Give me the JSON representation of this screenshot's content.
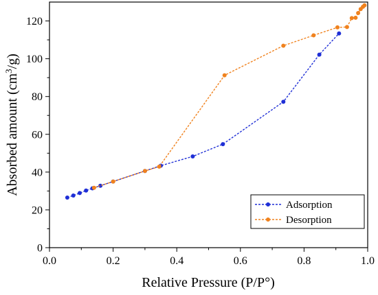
{
  "chart_data": {
    "type": "line",
    "xlabel": "Relative Pressure (P/P°)",
    "ylabel_main": "Absorbed amount (cm",
    "ylabel_sup": "3",
    "ylabel_end": "/g)",
    "xlim": [
      0.0,
      1.0
    ],
    "ylim": [
      0,
      130
    ],
    "xticks": [
      0.0,
      0.2,
      0.4,
      0.6,
      0.8,
      1.0
    ],
    "xtick_labels": [
      "0.0",
      "0.2",
      "0.4",
      "0.6",
      "0.8",
      "1.0"
    ],
    "yticks": [
      0,
      20,
      40,
      60,
      80,
      100,
      120
    ],
    "ytick_labels": [
      "0",
      "20",
      "40",
      "60",
      "80",
      "100",
      "120"
    ],
    "grid": false,
    "legend_position": "bottom-right",
    "series": [
      {
        "name": "Adsorption",
        "color": "#1f2fd6",
        "line_style": "dashed",
        "points": [
          [
            0.056,
            26.5
          ],
          [
            0.075,
            27.6
          ],
          [
            0.095,
            28.9
          ],
          [
            0.115,
            30.2
          ],
          [
            0.135,
            31.4
          ],
          [
            0.16,
            32.8
          ],
          [
            0.2,
            35.0
          ],
          [
            0.3,
            40.6
          ],
          [
            0.35,
            43.4
          ],
          [
            0.45,
            48.3
          ],
          [
            0.545,
            54.8
          ],
          [
            0.735,
            77.2
          ],
          [
            0.848,
            102.2
          ],
          [
            0.91,
            113.4
          ]
        ]
      },
      {
        "name": "Desorption",
        "color": "#f0821e",
        "line_style": "dashed",
        "points": [
          [
            0.99,
            128.3
          ],
          [
            0.985,
            127.5
          ],
          [
            0.978,
            126.3
          ],
          [
            0.97,
            124.2
          ],
          [
            0.962,
            121.7
          ],
          [
            0.95,
            121.5
          ],
          [
            0.935,
            116.8
          ],
          [
            0.905,
            116.6
          ],
          [
            0.83,
            112.4
          ],
          [
            0.735,
            106.9
          ],
          [
            0.55,
            91.2
          ],
          [
            0.345,
            42.9
          ],
          [
            0.3,
            40.6
          ],
          [
            0.2,
            35.0
          ],
          [
            0.14,
            31.7
          ]
        ]
      }
    ]
  }
}
